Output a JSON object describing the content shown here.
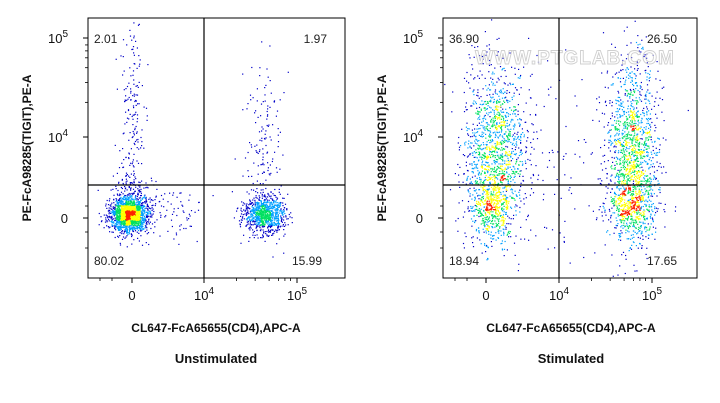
{
  "chart_data": [
    {
      "type": "scatter",
      "caption": "Unstimulated",
      "xlabel": "CL647-FcA65655(CD4),APC-A",
      "ylabel": "PE-FcA98285(TIGIT),PE-A",
      "x_ticks": [
        {
          "label": "0",
          "value": 0
        },
        {
          "label": "10",
          "sup": "4",
          "value": 10000
        },
        {
          "label": "10",
          "sup": "5",
          "value": 100000
        }
      ],
      "y_ticks": [
        {
          "label": "0",
          "value": 0
        },
        {
          "label": "10",
          "sup": "4",
          "value": 10000
        },
        {
          "label": "10",
          "sup": "5",
          "value": 100000
        }
      ],
      "quadrants": {
        "top_left": "2.01",
        "top_right": "1.97",
        "bottom_left": "80.02",
        "bottom_right": "15.99"
      },
      "color_scale": [
        "#0000c8",
        "#00a0ff",
        "#00e060",
        "#ffff00",
        "#ff2000"
      ]
    },
    {
      "type": "scatter",
      "caption": "Stimulated",
      "xlabel": "CL647-FcA65655(CD4),APC-A",
      "ylabel": "PE-FcA98285(TIGIT),PE-A",
      "x_ticks": [
        {
          "label": "0",
          "value": 0
        },
        {
          "label": "10",
          "sup": "4",
          "value": 10000
        },
        {
          "label": "10",
          "sup": "5",
          "value": 100000
        }
      ],
      "y_ticks": [
        {
          "label": "0",
          "value": 0
        },
        {
          "label": "10",
          "sup": "4",
          "value": 10000
        },
        {
          "label": "10",
          "sup": "5",
          "value": 100000
        }
      ],
      "quadrants": {
        "top_left": "36.90",
        "top_right": "26.50",
        "bottom_left": "18.94",
        "bottom_right": "17.65"
      },
      "watermark": "WWW.PTGLAB.COM",
      "color_scale": [
        "#0000c8",
        "#00a0ff",
        "#00e060",
        "#ffff00",
        "#ff2000"
      ]
    }
  ]
}
